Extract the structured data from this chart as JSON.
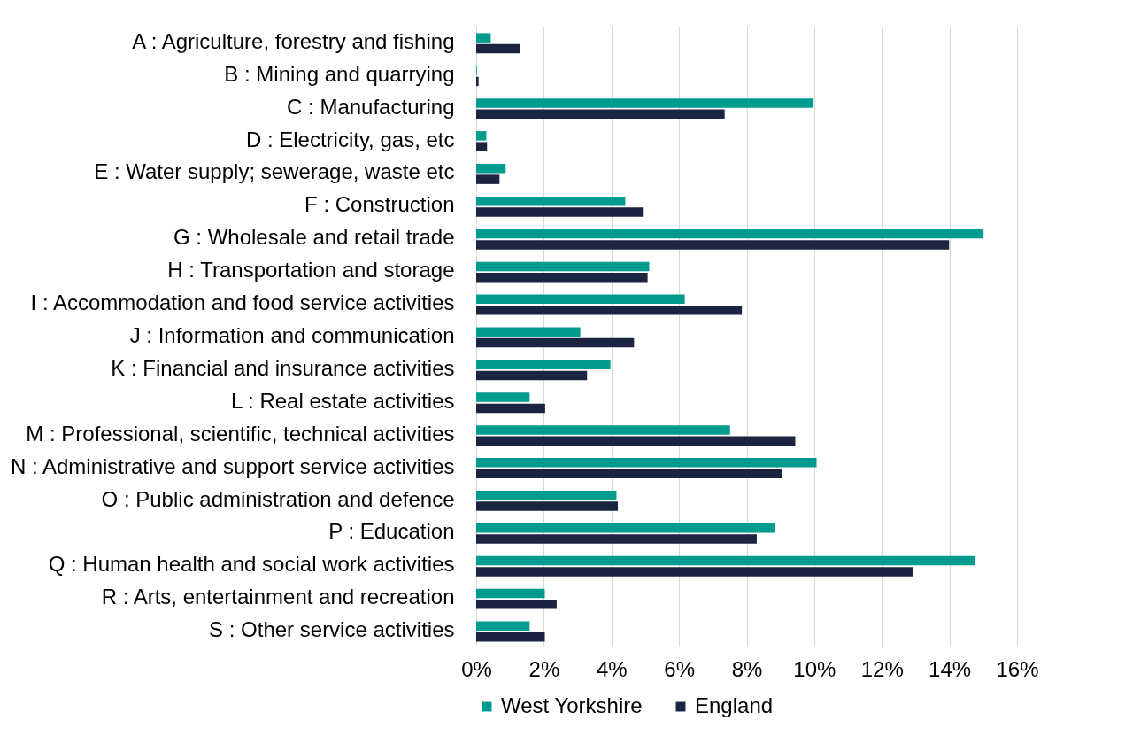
{
  "chart_data": {
    "type": "bar",
    "orientation": "horizontal",
    "categories": [
      "A : Agriculture, forestry and fishing",
      "B : Mining and quarrying",
      "C : Manufacturing",
      "D : Electricity, gas, etc",
      "E : Water supply; sewerage, waste etc",
      "F : Construction",
      "G : Wholesale and retail trade",
      "H : Transportation and storage",
      "I : Accommodation and food service activities",
      "J : Information and communication",
      "K : Financial and insurance activities",
      "L : Real estate activities",
      "M : Professional, scientific, technical activities",
      "N : Administrative and support service activities",
      "O : Public administration and defence",
      "P : Education",
      "Q : Human health and social work activities",
      "R : Arts, entertainment and recreation",
      "S : Other service activities"
    ],
    "series": [
      {
        "name": "West Yorkshire",
        "color": "#009b8f",
        "values": [
          0.43,
          0.02,
          9.98,
          0.3,
          0.87,
          4.41,
          15.01,
          5.12,
          6.17,
          3.08,
          3.97,
          1.58,
          7.51,
          10.07,
          4.15,
          8.83,
          14.75,
          2.03,
          1.58
        ]
      },
      {
        "name": "England",
        "color": "#1b2440",
        "values": [
          1.29,
          0.07,
          7.35,
          0.32,
          0.69,
          4.93,
          13.99,
          5.07,
          7.86,
          4.67,
          3.28,
          2.04,
          9.44,
          9.05,
          4.19,
          8.3,
          12.93,
          2.38,
          2.03
        ]
      }
    ],
    "xlim": [
      0,
      16
    ],
    "xticks": [
      {
        "value": 0,
        "label": "0%"
      },
      {
        "value": 2,
        "label": "2%"
      },
      {
        "value": 4,
        "label": "4%"
      },
      {
        "value": 6,
        "label": "6%"
      },
      {
        "value": 8,
        "label": "8%"
      },
      {
        "value": 10,
        "label": "10%"
      },
      {
        "value": 12,
        "label": "12%"
      },
      {
        "value": 14,
        "label": "14%"
      },
      {
        "value": 16,
        "label": "16%"
      }
    ],
    "grid": "x",
    "legend": "bottom"
  }
}
